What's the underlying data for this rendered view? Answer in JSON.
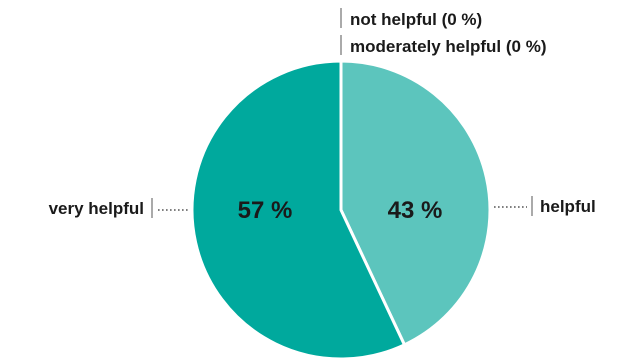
{
  "chart_data": {
    "type": "pie",
    "slices": [
      {
        "label": "very helpful",
        "value": 57,
        "value_text": "57 %",
        "color": "#00a99d"
      },
      {
        "label": "helpful",
        "value": 43,
        "value_text": "43 %",
        "color": "#5cc5bd"
      },
      {
        "label": "not helpful",
        "value": 0,
        "value_text": "0 %",
        "color": "#1a1a1a"
      },
      {
        "label": "moderately helpful",
        "value": 0,
        "value_text": "0 %",
        "color": "#1a1a1a"
      }
    ],
    "labels": {
      "very_helpful": "very helpful",
      "helpful": "helpful",
      "not_helpful": "not helpful (0 %)",
      "moderately_helpful": "moderately helpful (0 %)"
    },
    "legend": "none",
    "start_angle": "12 o'clock",
    "direction": "clockwise"
  }
}
